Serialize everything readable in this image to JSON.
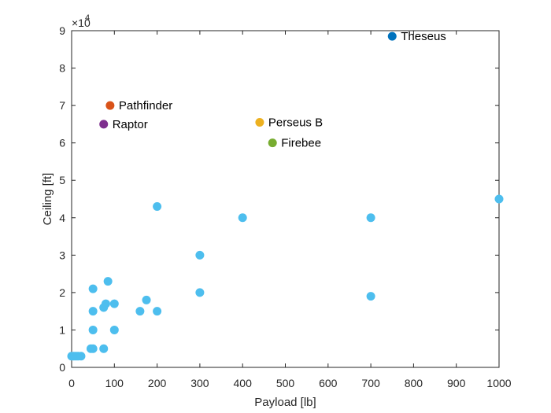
{
  "chart_data": {
    "type": "scatter",
    "title": "",
    "xlabel": "Payload [lb]",
    "ylabel": "Ceiling [ft]",
    "xlim": [
      0,
      1000
    ],
    "ylim": [
      0,
      90000
    ],
    "x_ticks": [
      0,
      100,
      200,
      300,
      400,
      500,
      600,
      700,
      800,
      900,
      1000
    ],
    "y_ticks": [
      0,
      10000,
      20000,
      30000,
      40000,
      50000,
      60000,
      70000,
      80000,
      90000
    ],
    "y_tick_labels": [
      "0",
      "1",
      "2",
      "3",
      "4",
      "5",
      "6",
      "7",
      "8",
      "9"
    ],
    "y_multiplier": {
      "base": "×10",
      "exponent": "4"
    },
    "grid": false,
    "series": [
      {
        "color": "#4DBEEE",
        "points": [
          {
            "x": 0,
            "y": 3000
          },
          {
            "x": 5,
            "y": 3000
          },
          {
            "x": 10,
            "y": 3000
          },
          {
            "x": 15,
            "y": 3000
          },
          {
            "x": 22,
            "y": 3000
          },
          {
            "x": 45,
            "y": 5000
          },
          {
            "x": 50,
            "y": 5000
          },
          {
            "x": 75,
            "y": 5000
          },
          {
            "x": 50,
            "y": 10000
          },
          {
            "x": 100,
            "y": 10000
          },
          {
            "x": 50,
            "y": 15000
          },
          {
            "x": 160,
            "y": 15000
          },
          {
            "x": 200,
            "y": 15000
          },
          {
            "x": 75,
            "y": 16000
          },
          {
            "x": 80,
            "y": 17000
          },
          {
            "x": 100,
            "y": 17000
          },
          {
            "x": 175,
            "y": 18000
          },
          {
            "x": 700,
            "y": 19000
          },
          {
            "x": 300,
            "y": 20000
          },
          {
            "x": 50,
            "y": 21000
          },
          {
            "x": 85,
            "y": 23000
          },
          {
            "x": 300,
            "y": 30000
          },
          {
            "x": 400,
            "y": 40000
          },
          {
            "x": 700,
            "y": 40000
          },
          {
            "x": 200,
            "y": 43000
          },
          {
            "x": 1000,
            "y": 45000
          }
        ]
      }
    ],
    "annotated_points": [
      {
        "label": "Theseus",
        "x": 750,
        "y": 88500,
        "color": "#0072BD"
      },
      {
        "label": "Pathfinder",
        "x": 90,
        "y": 70000,
        "color": "#D95319"
      },
      {
        "label": "Raptor",
        "x": 75,
        "y": 65000,
        "color": "#7E2F8E"
      },
      {
        "label": "Perseus B",
        "x": 440,
        "y": 65500,
        "color": "#EDB120"
      },
      {
        "label": "Firebee",
        "x": 470,
        "y": 60000,
        "color": "#77AC30"
      }
    ]
  }
}
